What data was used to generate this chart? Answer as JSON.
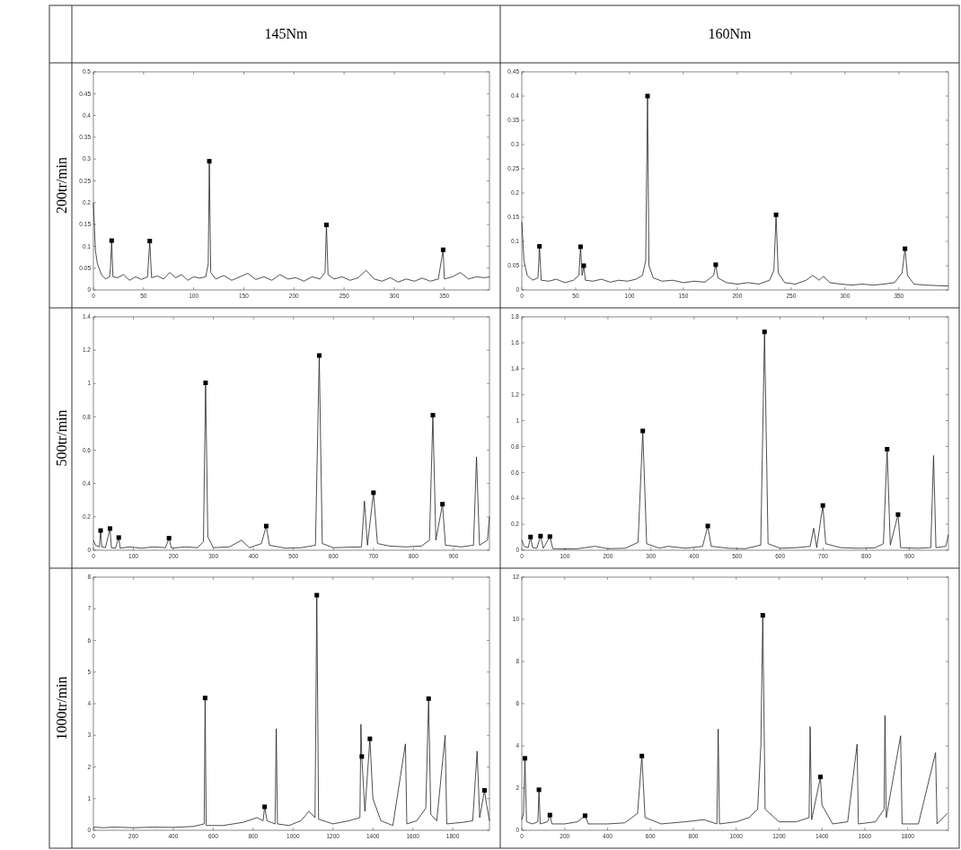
{
  "chart_data": [
    {
      "type": "line",
      "title": "145Nm",
      "ylabel": "200tr/min",
      "xlim": [
        0,
        395
      ],
      "xticks": [
        0,
        50,
        100,
        150,
        200,
        250,
        300,
        350
      ],
      "ylim": [
        0,
        0.5
      ],
      "yticks": [
        0,
        0.05,
        0.1,
        0.15,
        0.2,
        0.25,
        0.3,
        0.35,
        0.4,
        0.45,
        0.5
      ],
      "series": [
        {
          "color": "#222222",
          "x": [
            0,
            2,
            4,
            8,
            12,
            16,
            17,
            18.2,
            19.5,
            24,
            30,
            36,
            42,
            48,
            54,
            56.2,
            58,
            64,
            70,
            76,
            82,
            88,
            94,
            100,
            106,
            112,
            114.5,
            115.6,
            117,
            122,
            130,
            138,
            146,
            154,
            162,
            170,
            178,
            186,
            194,
            202,
            210,
            218,
            226,
            231,
            232.4,
            234,
            240,
            248,
            256,
            264,
            272,
            280,
            288,
            296,
            304,
            312,
            320,
            328,
            336,
            344,
            348.8,
            350,
            358,
            366,
            374,
            382,
            390,
            395
          ],
          "values": [
            0.2,
            0.09,
            0.06,
            0.035,
            0.025,
            0.03,
            0.05,
            0.113,
            0.03,
            0.028,
            0.035,
            0.022,
            0.03,
            0.024,
            0.03,
            0.112,
            0.028,
            0.032,
            0.025,
            0.04,
            0.028,
            0.035,
            0.022,
            0.03,
            0.027,
            0.03,
            0.06,
            0.295,
            0.04,
            0.025,
            0.033,
            0.022,
            0.03,
            0.038,
            0.024,
            0.03,
            0.022,
            0.035,
            0.025,
            0.028,
            0.02,
            0.03,
            0.025,
            0.04,
            0.149,
            0.035,
            0.025,
            0.03,
            0.022,
            0.028,
            0.045,
            0.025,
            0.02,
            0.028,
            0.018,
            0.025,
            0.02,
            0.027,
            0.02,
            0.025,
            0.092,
            0.025,
            0.03,
            0.04,
            0.025,
            0.03,
            0.028,
            0.03
          ]
        },
        {
          "type": "scatter",
          "marker": "square",
          "color": "#000000",
          "x": [
            18.2,
            56.2,
            115.6,
            232.4,
            348.8
          ],
          "values": [
            0.113,
            0.112,
            0.295,
            0.149,
            0.092
          ]
        }
      ]
    },
    {
      "type": "line",
      "title": "160Nm",
      "xlim": [
        0,
        396
      ],
      "xticks": [
        0,
        50,
        100,
        150,
        200,
        250,
        300,
        350
      ],
      "ylim": [
        0,
        0.45
      ],
      "yticks": [
        0,
        0.05,
        0.1,
        0.15,
        0.2,
        0.25,
        0.3,
        0.35,
        0.4,
        0.45
      ],
      "series": [
        {
          "color": "#222222",
          "x": [
            0,
            2,
            5,
            10,
            15,
            16.4,
            18,
            25,
            32,
            40,
            48,
            53,
            54.5,
            56,
            57.5,
            59,
            66,
            74,
            82,
            90,
            98,
            106,
            112,
            115,
            116.7,
            118,
            122,
            130,
            140,
            150,
            160,
            170,
            178,
            180,
            182,
            190,
            200,
            210,
            220,
            230,
            234,
            236,
            238,
            244,
            254,
            264,
            270,
            276,
            280,
            286,
            296,
            306,
            316,
            326,
            336,
            346,
            353,
            355.7,
            358,
            364,
            374,
            384,
            396
          ],
          "values": [
            0.14,
            0.06,
            0.03,
            0.02,
            0.025,
            0.09,
            0.02,
            0.018,
            0.022,
            0.015,
            0.02,
            0.03,
            0.089,
            0.03,
            0.05,
            0.02,
            0.018,
            0.022,
            0.016,
            0.02,
            0.018,
            0.022,
            0.03,
            0.06,
            0.4,
            0.05,
            0.025,
            0.018,
            0.02,
            0.015,
            0.018,
            0.016,
            0.03,
            0.052,
            0.025,
            0.015,
            0.012,
            0.015,
            0.012,
            0.02,
            0.04,
            0.155,
            0.035,
            0.015,
            0.012,
            0.02,
            0.03,
            0.02,
            0.028,
            0.015,
            0.012,
            0.01,
            0.012,
            0.01,
            0.012,
            0.015,
            0.035,
            0.085,
            0.03,
            0.012,
            0.01,
            0.009,
            0.008
          ]
        },
        {
          "type": "scatter",
          "marker": "square",
          "color": "#000000",
          "x": [
            16.4,
            54.5,
            57.5,
            116.7,
            180,
            236,
            355.7
          ],
          "values": [
            0.09,
            0.089,
            0.05,
            0.4,
            0.052,
            0.155,
            0.085
          ]
        }
      ]
    },
    {
      "type": "line",
      "ylabel": "500tr/min",
      "xlim": [
        0,
        990
      ],
      "xticks": [
        0,
        100,
        200,
        300,
        400,
        500,
        600,
        700,
        800,
        900
      ],
      "ylim": [
        0,
        1.4
      ],
      "yticks": [
        0,
        0.2,
        0.4,
        0.6,
        0.8,
        1,
        1.2,
        1.4
      ],
      "series": [
        {
          "color": "#222222",
          "x": [
            0,
            5,
            15,
            18,
            21,
            30,
            41.5,
            45,
            55,
            63.4,
            67,
            90,
            120,
            150,
            180,
            189,
            195,
            230,
            260,
            275,
            280.4,
            286,
            300,
            340,
            370,
            390,
            420,
            432,
            440,
            480,
            520,
            555,
            564.5,
            572,
            600,
            640,
            670,
            677.5,
            685,
            700,
            710,
            740,
            780,
            820,
            840,
            848.5,
            856,
            872.5,
            880,
            920,
            950,
            957.6,
            965,
            985,
            990
          ],
          "values": [
            0.06,
            0.03,
            0.02,
            0.118,
            0.02,
            0.015,
            0.13,
            0.015,
            0.012,
            0.076,
            0.012,
            0.02,
            0.012,
            0.02,
            0.015,
            0.072,
            0.012,
            0.02,
            0.015,
            0.05,
            1.004,
            0.08,
            0.015,
            0.02,
            0.06,
            0.015,
            0.04,
            0.145,
            0.03,
            0.012,
            0.015,
            0.03,
            1.168,
            0.04,
            0.015,
            0.018,
            0.02,
            0.295,
            0.03,
            0.345,
            0.04,
            0.025,
            0.02,
            0.025,
            0.06,
            0.81,
            0.06,
            0.276,
            0.03,
            0.02,
            0.03,
            0.56,
            0.03,
            0.06,
            0.2
          ]
        },
        {
          "type": "scatter",
          "marker": "square",
          "color": "#000000",
          "x": [
            18,
            41.5,
            63.4,
            189,
            280.4,
            432,
            564.5,
            700,
            848.5,
            872.5
          ],
          "values": [
            0.118,
            0.13,
            0.076,
            0.072,
            1.004,
            0.145,
            1.168,
            0.345,
            0.81,
            0.276
          ]
        }
      ]
    },
    {
      "type": "line",
      "xlim": [
        0,
        991
      ],
      "xticks": [
        0,
        100,
        200,
        300,
        400,
        500,
        600,
        700,
        800,
        900
      ],
      "ylim": [
        0,
        1.8
      ],
      "yticks": [
        0,
        0.2,
        0.4,
        0.6,
        0.8,
        1,
        1.2,
        1.4,
        1.6,
        1.8
      ],
      "series": [
        {
          "color": "#222222",
          "x": [
            0,
            5,
            15,
            20.3,
            25,
            35,
            43.5,
            50,
            65.2,
            72,
            100,
            130,
            170,
            200,
            240,
            270,
            281,
            290,
            320,
            340,
            380,
            420,
            432,
            440,
            480,
            520,
            555,
            563.8,
            572,
            600,
            640,
            670,
            678,
            685,
            699.3,
            706,
            740,
            780,
            820,
            840,
            848.6,
            856,
            874,
            880,
            920,
            950,
            956.5,
            962,
            985,
            991
          ],
          "values": [
            0.08,
            0.03,
            0.02,
            0.102,
            0.02,
            0.015,
            0.109,
            0.015,
            0.105,
            0.012,
            0.01,
            0.012,
            0.03,
            0.012,
            0.015,
            0.06,
            0.92,
            0.05,
            0.015,
            0.03,
            0.015,
            0.03,
            0.187,
            0.03,
            0.015,
            0.012,
            0.04,
            1.684,
            0.05,
            0.015,
            0.02,
            0.03,
            0.17,
            0.02,
            0.345,
            0.05,
            0.02,
            0.015,
            0.018,
            0.05,
            0.779,
            0.04,
            0.275,
            0.02,
            0.015,
            0.02,
            0.73,
            0.02,
            0.03,
            0.12
          ]
        },
        {
          "type": "scatter",
          "marker": "square",
          "color": "#000000",
          "x": [
            20.3,
            43.5,
            65.2,
            281,
            432,
            563.8,
            699.3,
            848.6,
            874
          ],
          "values": [
            0.102,
            0.109,
            0.105,
            0.92,
            0.187,
            1.684,
            0.345,
            0.779,
            0.275
          ]
        }
      ]
    },
    {
      "type": "line",
      "ylabel": "1000tr/min",
      "xlim": [
        0,
        1984
      ],
      "xticks": [
        0,
        200,
        400,
        600,
        800,
        1000,
        1200,
        1400,
        1600,
        1800
      ],
      "ylim": [
        0,
        8
      ],
      "yticks": [
        0,
        1,
        2,
        3,
        4,
        5,
        6,
        7,
        8
      ],
      "series": [
        {
          "color": "#222222",
          "x": [
            0,
            50,
            100,
            200,
            300,
            400,
            500,
            555,
            559.6,
            565,
            650,
            750,
            820,
            850,
            857.6,
            870,
            910,
            916,
            922,
            980,
            1040,
            1080,
            1110,
            1119,
            1128,
            1200,
            1280,
            1335,
            1340,
            1344.5,
            1360,
            1385,
            1400,
            1440,
            1500,
            1563,
            1570,
            1620,
            1665,
            1679,
            1690,
            1720,
            1762,
            1770,
            1850,
            1900,
            1922,
            1935,
            1959,
            1970,
            1984
          ],
          "values": [
            0.1,
            0.08,
            0.1,
            0.08,
            0.1,
            0.09,
            0.12,
            0.2,
            4.18,
            0.15,
            0.15,
            0.25,
            0.4,
            0.3,
            0.74,
            0.3,
            0.2,
            3.21,
            0.2,
            0.15,
            0.3,
            0.6,
            0.4,
            7.43,
            0.35,
            0.2,
            0.3,
            0.4,
            3.35,
            2.33,
            0.6,
            2.89,
            1,
            0.3,
            0.15,
            2.73,
            0.2,
            0.3,
            0.7,
            4.16,
            0.5,
            0.3,
            3,
            0.2,
            0.25,
            0.3,
            2.5,
            0.4,
            1.26,
            0.8,
            0.3
          ]
        },
        {
          "type": "scatter",
          "marker": "square",
          "color": "#000000",
          "x": [
            559.6,
            857.6,
            1119,
            1344.5,
            1385,
            1679,
            1959
          ],
          "values": [
            4.18,
            0.74,
            7.43,
            2.33,
            2.89,
            4.16,
            1.26
          ]
        }
      ]
    },
    {
      "type": "line",
      "xlim": [
        0,
        1990
      ],
      "xticks": [
        0,
        200,
        400,
        600,
        800,
        1000,
        1200,
        1400,
        1600,
        1800
      ],
      "ylim": [
        0,
        12
      ],
      "yticks": [
        0,
        2,
        4,
        6,
        8,
        10,
        12
      ],
      "series": [
        {
          "color": "#222222",
          "x": [
            0,
            8,
            14.5,
            22,
            50,
            75,
            80,
            86,
            120,
            131,
            140,
            200,
            260,
            295,
            310,
            400,
            480,
            540,
            560,
            575,
            650,
            760,
            850,
            910,
            916,
            922,
            1000,
            1060,
            1100,
            1115,
            1124,
            1135,
            1200,
            1280,
            1340,
            1345,
            1352,
            1393,
            1400,
            1450,
            1520,
            1564,
            1570,
            1650,
            1690,
            1694,
            1700,
            1767,
            1774,
            1850,
            1930,
            1937,
            1985
          ],
          "values": [
            0.5,
            0.8,
            3.41,
            0.4,
            0.3,
            0.4,
            1.92,
            0.3,
            0.4,
            0.72,
            0.3,
            0.3,
            0.4,
            0.69,
            0.3,
            0.3,
            0.35,
            0.8,
            3.52,
            0.6,
            0.3,
            0.4,
            0.5,
            0.3,
            4.8,
            0.3,
            0.4,
            0.6,
            1,
            4,
            10.19,
            1,
            0.4,
            0.4,
            0.6,
            4.91,
            0.5,
            2.53,
            1.2,
            0.3,
            0.4,
            4.08,
            0.3,
            0.4,
            1,
            5.44,
            0.6,
            4.48,
            0.3,
            0.3,
            3.68,
            0.3,
            0.8
          ]
        },
        {
          "type": "scatter",
          "marker": "square",
          "color": "#000000",
          "x": [
            14.5,
            80,
            131,
            295,
            560,
            1124,
            1393
          ],
          "values": [
            3.41,
            1.92,
            0.72,
            0.69,
            3.52,
            10.19,
            2.53
          ]
        }
      ]
    }
  ]
}
